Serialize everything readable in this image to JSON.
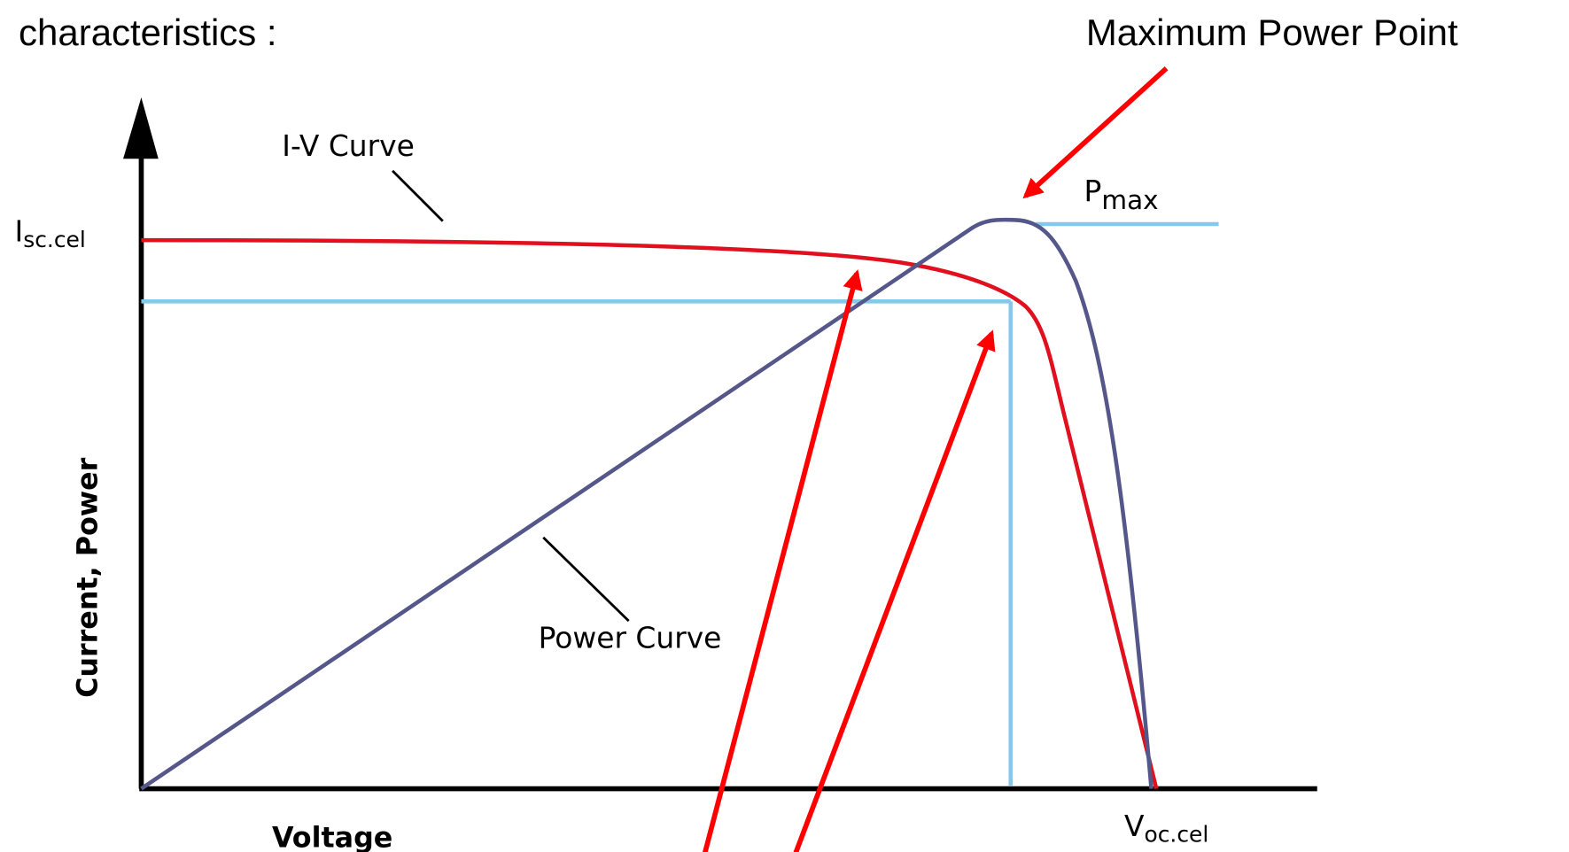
{
  "header": {
    "title": "characteristics :",
    "callout": "Maximum Power Point"
  },
  "labels": {
    "iv_curve": "I-V Curve",
    "power_curve": "Power Curve",
    "pmax": {
      "main": "P",
      "sub": "max"
    },
    "isc": {
      "main": "I",
      "sub": "sc.cel"
    },
    "voc": {
      "main": "V",
      "sub": "oc.cel"
    },
    "y_axis": "Current, Power",
    "x_axis": "Voltage"
  }
}
